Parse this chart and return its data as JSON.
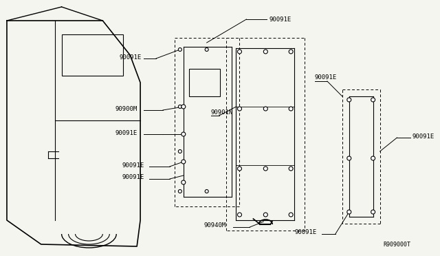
{
  "bg_color": "#f5f5f0",
  "line_color": "#000000",
  "title": "",
  "labels": {
    "top_center": "90091E",
    "left_mid": "90091E",
    "left_mid2": "90900M",
    "left_mid3": "90091E",
    "left_bot1": "90091E",
    "left_bot2": "90091E",
    "center_right": "90901N",
    "right_top": "90091E",
    "bottom_handle": "90940M",
    "bottom_right_low": "90091E",
    "far_right": "90091E",
    "ref_code": "R909000T"
  }
}
